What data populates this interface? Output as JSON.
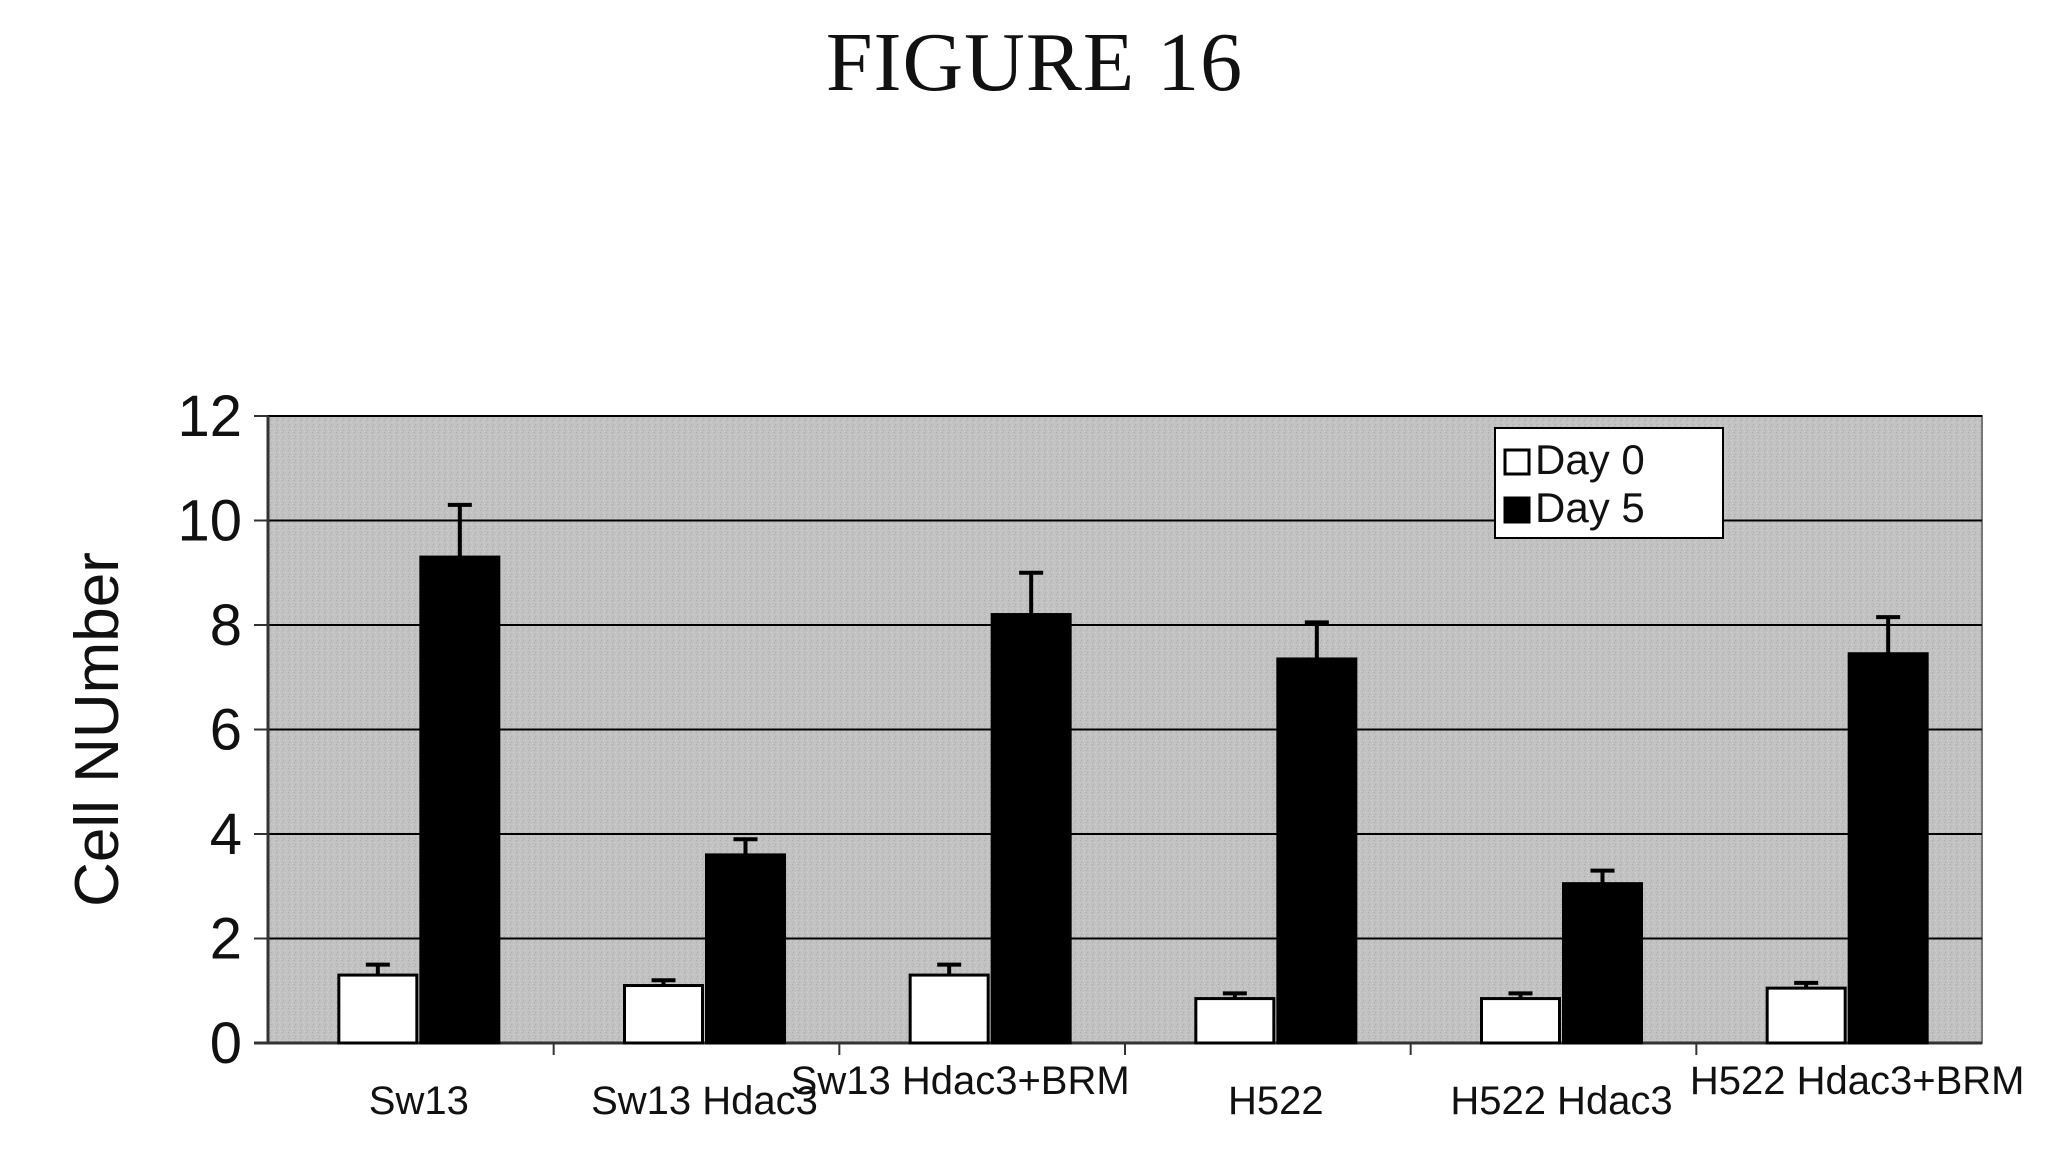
{
  "figure": {
    "title": "FIGURE 16"
  },
  "chart_data": {
    "type": "bar",
    "title": "",
    "xlabel": "",
    "ylabel": "Cell NUmber",
    "ylim": [
      0,
      12
    ],
    "yticks": [
      0,
      2,
      4,
      6,
      8,
      10,
      12
    ],
    "grid": true,
    "legend_position": "top-right",
    "categories": [
      "Sw13",
      "Sw13 Hdac3",
      "Sw13 Hdac3+BRM",
      "H522",
      "H522 Hdac3",
      "H522 Hdac3+BRM"
    ],
    "series": [
      {
        "name": "Day 0",
        "color": "#ffffff",
        "values": [
          1.3,
          1.1,
          1.3,
          0.85,
          0.85,
          1.05
        ],
        "errors": [
          0.2,
          0.1,
          0.2,
          0.1,
          0.1,
          0.1
        ]
      },
      {
        "name": "Day 5",
        "color": "#000000",
        "values": [
          9.3,
          3.6,
          8.2,
          7.35,
          3.05,
          7.45
        ],
        "errors": [
          1.0,
          0.3,
          0.8,
          0.7,
          0.25,
          0.7
        ]
      }
    ],
    "colors": {
      "plot_background": "#bdbdbd",
      "gridline": "#000000",
      "axis": "#555555"
    }
  }
}
